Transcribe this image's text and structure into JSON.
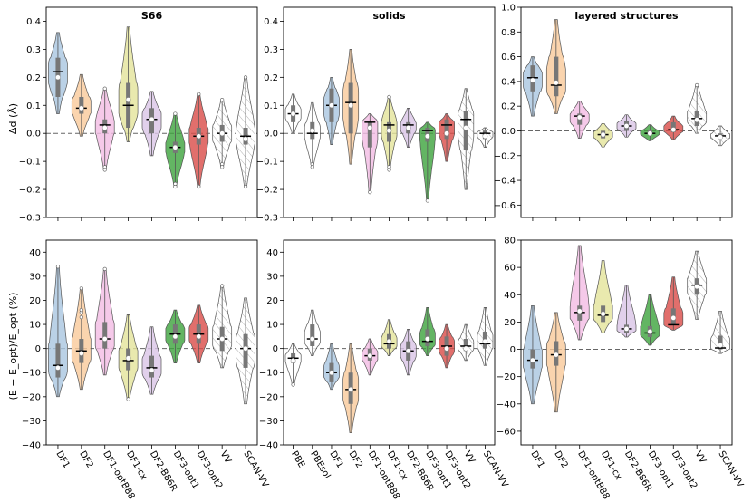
{
  "colors": {
    "DF1": "#a9c6e0",
    "DF2": "#f9c99a",
    "DF1-optB88": "#f2bbe3",
    "DF1-cx": "#e4e49a",
    "DF2-B86R": "#d9c4e6",
    "DF3-opt1": "#3ca33c",
    "DF3-opt2": "#d94b47",
    "VV": "#ffffff",
    "SCAN-VV": "#ffffff",
    "PBE": "#ffffff",
    "PBEsol": "#ffffff"
  },
  "ylabels": {
    "top": "Δd (Å)",
    "bottom": "(E − E_opt)/E_opt (%)"
  },
  "chart_data": [
    {
      "id": "s66_dd",
      "type": "violin",
      "title": "S66",
      "ylim": [
        -0.3,
        0.45
      ],
      "yticks": [
        -0.3,
        -0.2,
        -0.1,
        0.0,
        0.1,
        0.2,
        0.3,
        0.4
      ],
      "ytick_labels": [
        "−0.3",
        "−0.2",
        "−0.1",
        "0.0",
        "0.1",
        "0.2",
        "0.3",
        "0.4"
      ],
      "reference_line": 0,
      "categories": [
        "DF1",
        "DF2",
        "DF1-optB88",
        "DF1-cx",
        "DF2-B86R",
        "DF3-opt1",
        "DF3-opt2",
        "VV",
        "SCAN-VV"
      ],
      "show_xlabels": false,
      "series": [
        {
          "name": "DF1",
          "min": 0.07,
          "max": 0.36,
          "q1": 0.13,
          "q3": 0.27,
          "median": 0.22,
          "mean": 0.2,
          "outliers": []
        },
        {
          "name": "DF2",
          "min": -0.01,
          "max": 0.21,
          "q1": 0.07,
          "q3": 0.13,
          "median": 0.09,
          "mean": 0.09,
          "outliers": []
        },
        {
          "name": "DF1-optB88",
          "min": -0.13,
          "max": 0.16,
          "q1": 0.0,
          "q3": 0.05,
          "median": 0.03,
          "mean": 0.02,
          "outliers": [
            -0.12,
            -0.13,
            0.16
          ]
        },
        {
          "name": "DF1-cx",
          "min": -0.03,
          "max": 0.38,
          "q1": 0.02,
          "q3": 0.18,
          "median": 0.1,
          "mean": 0.12,
          "outliers": []
        },
        {
          "name": "DF2-B86R",
          "min": -0.08,
          "max": 0.15,
          "q1": 0.0,
          "q3": 0.09,
          "median": 0.05,
          "mean": 0.05,
          "outliers": []
        },
        {
          "name": "DF3-opt1",
          "min": -0.19,
          "max": 0.07,
          "q1": -0.07,
          "q3": -0.03,
          "median": -0.05,
          "mean": -0.05,
          "outliers": [
            -0.19,
            -0.18,
            0.07
          ]
        },
        {
          "name": "DF3-opt2",
          "min": -0.19,
          "max": 0.14,
          "q1": -0.04,
          "q3": 0.02,
          "median": -0.01,
          "mean": -0.01,
          "outliers": [
            -0.19,
            0.14
          ]
        },
        {
          "name": "VV",
          "min": -0.12,
          "max": 0.12,
          "q1": -0.03,
          "q3": 0.03,
          "median": 0.0,
          "mean": 0.0,
          "outliers": [
            -0.11,
            -0.12,
            0.12
          ]
        },
        {
          "name": "SCAN-VV",
          "min": -0.19,
          "max": 0.2,
          "q1": -0.04,
          "q3": 0.02,
          "median": -0.01,
          "mean": -0.02,
          "outliers": [
            -0.19,
            0.2
          ]
        }
      ]
    },
    {
      "id": "solids_dd",
      "type": "violin",
      "title": "solids",
      "ylim": [
        -0.3,
        0.45
      ],
      "yticks": [
        -0.3,
        -0.2,
        -0.1,
        0.0,
        0.1,
        0.2,
        0.3,
        0.4
      ],
      "ytick_labels": [
        "−0.3",
        "−0.2",
        "−0.1",
        "0.0",
        "0.1",
        "0.2",
        "0.3",
        "0.4"
      ],
      "reference_line": 0,
      "categories": [
        "PBE",
        "PBEsol",
        "DF1",
        "DF2",
        "DF1-optB88",
        "DF1-cx",
        "DF2-B86R",
        "DF3-opt1",
        "DF3-opt2",
        "VV",
        "SCAN-VV"
      ],
      "show_xlabels": false,
      "series": [
        {
          "name": "PBE",
          "min": 0.0,
          "max": 0.14,
          "q1": 0.04,
          "q3": 0.1,
          "median": 0.07,
          "mean": 0.07,
          "outliers": []
        },
        {
          "name": "PBEsol",
          "min": -0.12,
          "max": 0.11,
          "q1": -0.02,
          "q3": 0.04,
          "median": 0.0,
          "mean": 0.01,
          "outliers": [
            -0.11,
            -0.12
          ]
        },
        {
          "name": "DF1",
          "min": -0.04,
          "max": 0.2,
          "q1": 0.04,
          "q3": 0.16,
          "median": 0.1,
          "mean": 0.1,
          "outliers": []
        },
        {
          "name": "DF2",
          "min": -0.11,
          "max": 0.3,
          "q1": 0.0,
          "q3": 0.18,
          "median": 0.11,
          "mean": 0.1,
          "outliers": []
        },
        {
          "name": "DF1-optB88",
          "min": -0.21,
          "max": 0.07,
          "q1": -0.05,
          "q3": 0.04,
          "median": 0.04,
          "mean": 0.02,
          "outliers": [
            -0.21
          ]
        },
        {
          "name": "DF1-cx",
          "min": -0.13,
          "max": 0.13,
          "q1": -0.03,
          "q3": 0.04,
          "median": 0.03,
          "mean": 0.01,
          "outliers": [
            -0.12,
            -0.13,
            0.13
          ]
        },
        {
          "name": "DF2-B86R",
          "min": -0.05,
          "max": 0.09,
          "q1": 0.0,
          "q3": 0.04,
          "median": 0.03,
          "mean": 0.02,
          "outliers": []
        },
        {
          "name": "DF3-opt1",
          "min": -0.24,
          "max": 0.04,
          "q1": -0.03,
          "q3": 0.02,
          "median": 0.01,
          "mean": -0.01,
          "outliers": [
            -0.24
          ]
        },
        {
          "name": "DF3-opt2",
          "min": -0.1,
          "max": 0.07,
          "q1": -0.02,
          "q3": 0.05,
          "median": 0.03,
          "mean": 0.0,
          "outliers": []
        },
        {
          "name": "VV",
          "min": -0.2,
          "max": 0.16,
          "q1": -0.06,
          "q3": 0.08,
          "median": 0.05,
          "mean": 0.02,
          "outliers": []
        },
        {
          "name": "SCAN-VV",
          "min": -0.05,
          "max": 0.02,
          "q1": -0.02,
          "q3": 0.01,
          "median": 0.0,
          "mean": -0.01,
          "outliers": []
        }
      ]
    },
    {
      "id": "layered_dd",
      "type": "violin",
      "title": "layered structures",
      "ylim": [
        -0.7,
        1.0
      ],
      "yticks": [
        -0.6,
        -0.4,
        -0.2,
        0.0,
        0.2,
        0.4,
        0.6,
        0.8,
        1.0
      ],
      "ytick_labels": [
        "−0.6",
        "−0.4",
        "−0.2",
        "0.0",
        "0.2",
        "0.4",
        "0.6",
        "0.8",
        "1.0"
      ],
      "reference_line": 0,
      "categories": [
        "DF1",
        "DF2",
        "DF1-optB88",
        "DF1-cx",
        "DF2-B86R",
        "DF3-opt1",
        "DF3-opt2",
        "VV",
        "SCAN-VV"
      ],
      "show_xlabels": false,
      "series": [
        {
          "name": "DF1",
          "min": 0.12,
          "max": 0.6,
          "q1": 0.32,
          "q3": 0.53,
          "median": 0.43,
          "mean": 0.41,
          "outliers": []
        },
        {
          "name": "DF2",
          "min": 0.14,
          "max": 0.9,
          "q1": 0.28,
          "q3": 0.6,
          "median": 0.37,
          "mean": 0.39,
          "outliers": []
        },
        {
          "name": "DF1-optB88",
          "min": -0.06,
          "max": 0.24,
          "q1": 0.05,
          "q3": 0.14,
          "median": 0.12,
          "mean": 0.11,
          "outliers": []
        },
        {
          "name": "DF1-cx",
          "min": -0.13,
          "max": 0.06,
          "q1": -0.06,
          "q3": 0.0,
          "median": -0.03,
          "mean": -0.03,
          "outliers": []
        },
        {
          "name": "DF2-B86R",
          "min": -0.05,
          "max": 0.13,
          "q1": 0.0,
          "q3": 0.08,
          "median": 0.04,
          "mean": 0.04,
          "outliers": []
        },
        {
          "name": "DF3-opt1",
          "min": -0.08,
          "max": 0.05,
          "q1": -0.03,
          "q3": 0.01,
          "median": -0.02,
          "mean": -0.02,
          "outliers": []
        },
        {
          "name": "DF3-opt2",
          "min": -0.07,
          "max": 0.12,
          "q1": -0.01,
          "q3": 0.07,
          "median": 0.01,
          "mean": 0.01,
          "outliers": []
        },
        {
          "name": "VV",
          "min": -0.02,
          "max": 0.37,
          "q1": 0.04,
          "q3": 0.16,
          "median": 0.1,
          "mean": 0.09,
          "outliers": [
            0.37
          ]
        },
        {
          "name": "SCAN-VV",
          "min": -0.12,
          "max": 0.04,
          "q1": -0.06,
          "q3": -0.02,
          "median": -0.04,
          "mean": -0.05,
          "outliers": []
        }
      ]
    },
    {
      "id": "s66_e",
      "type": "violin",
      "title": "",
      "ylim": [
        -40,
        45
      ],
      "yticks": [
        -40,
        -30,
        -20,
        -10,
        0,
        10,
        20,
        30,
        40
      ],
      "ytick_labels": [
        "−40",
        "−30",
        "−20",
        "−10",
        "0",
        "10",
        "20",
        "30",
        "40"
      ],
      "reference_line": 0,
      "categories": [
        "DF1",
        "DF2",
        "DF1-optB88",
        "DF1-cx",
        "DF2-B86R",
        "DF3-opt1",
        "DF3-opt2",
        "VV",
        "SCAN-VV"
      ],
      "show_xlabels": true,
      "series": [
        {
          "name": "DF1",
          "min": -20,
          "max": 34,
          "q1": -12,
          "q3": 2,
          "median": -7,
          "mean": -8,
          "outliers": [
            34
          ]
        },
        {
          "name": "DF2",
          "min": -17,
          "max": 25,
          "q1": -6,
          "q3": 4,
          "median": -1,
          "mean": -2,
          "outliers": [
            13,
            15,
            16,
            25
          ]
        },
        {
          "name": "DF1-optB88",
          "min": -11,
          "max": 33,
          "q1": 0,
          "q3": 11,
          "median": 4,
          "mean": 4,
          "outliers": [
            33
          ]
        },
        {
          "name": "DF1-cx",
          "min": -21,
          "max": 14,
          "q1": -9,
          "q3": 0,
          "median": -5,
          "mean": -4,
          "outliers": [
            -21
          ]
        },
        {
          "name": "DF2-B86R",
          "min": -19,
          "max": 9,
          "q1": -12,
          "q3": -3,
          "median": -8,
          "mean": -9,
          "outliers": []
        },
        {
          "name": "DF3-opt1",
          "min": -6,
          "max": 16,
          "q1": 2,
          "q3": 10,
          "median": 6,
          "mean": 5,
          "outliers": []
        },
        {
          "name": "DF3-opt2",
          "min": -6,
          "max": 18,
          "q1": 2,
          "q3": 10,
          "median": 6,
          "mean": 5,
          "outliers": []
        },
        {
          "name": "VV",
          "min": -8,
          "max": 26,
          "q1": -1,
          "q3": 9,
          "median": 4,
          "mean": 4,
          "outliers": [
            26
          ]
        },
        {
          "name": "SCAN-VV",
          "min": -23,
          "max": 21,
          "q1": -8,
          "q3": 6,
          "median": 0,
          "mean": 0,
          "outliers": []
        }
      ]
    },
    {
      "id": "solids_e",
      "type": "violin",
      "title": "",
      "ylim": [
        -40,
        45
      ],
      "yticks": [
        -40,
        -30,
        -20,
        -10,
        0,
        10,
        20,
        30,
        40
      ],
      "ytick_labels": [
        "−40",
        "−30",
        "−20",
        "−10",
        "0",
        "10",
        "20",
        "30",
        "40"
      ],
      "reference_line": 0,
      "categories": [
        "PBE",
        "PBEsol",
        "DF1",
        "DF2",
        "DF1-optB88",
        "DF1-cx",
        "DF2-B86R",
        "DF3-opt1",
        "DF3-opt2",
        "VV",
        "SCAN-VV"
      ],
      "show_xlabels": true,
      "series": [
        {
          "name": "PBE",
          "min": -15,
          "max": 2,
          "q1": -6,
          "q3": -2,
          "median": -4,
          "mean": -5,
          "outliers": [
            -15
          ]
        },
        {
          "name": "PBEsol",
          "min": -3,
          "max": 16,
          "q1": 1,
          "q3": 10,
          "median": 4,
          "mean": 4,
          "outliers": []
        },
        {
          "name": "DF1",
          "min": -17,
          "max": 2,
          "q1": -14,
          "q3": -6,
          "median": -10,
          "mean": -10,
          "outliers": []
        },
        {
          "name": "DF2",
          "min": -35,
          "max": 2,
          "q1": -23,
          "q3": -10,
          "median": -17,
          "mean": -17,
          "outliers": []
        },
        {
          "name": "DF1-optB88",
          "min": -11,
          "max": 4,
          "q1": -5,
          "q3": 0,
          "median": -3,
          "mean": -3,
          "outliers": []
        },
        {
          "name": "DF1-cx",
          "min": -3,
          "max": 12,
          "q1": 0,
          "q3": 6,
          "median": 2,
          "mean": 3,
          "outliers": []
        },
        {
          "name": "DF2-B86R",
          "min": -11,
          "max": 8,
          "q1": -5,
          "q3": 3,
          "median": -1,
          "mean": -1,
          "outliers": []
        },
        {
          "name": "DF3-opt1",
          "min": -3,
          "max": 17,
          "q1": 1,
          "q3": 8,
          "median": 3,
          "mean": 4,
          "outliers": []
        },
        {
          "name": "DF3-opt2",
          "min": -8,
          "max": 10,
          "q1": -3,
          "q3": 5,
          "median": 1,
          "mean": 0,
          "outliers": []
        },
        {
          "name": "VV",
          "min": -5,
          "max": 10,
          "q1": -1,
          "q3": 4,
          "median": 1,
          "mean": 0,
          "outliers": []
        },
        {
          "name": "SCAN-VV",
          "min": -7,
          "max": 17,
          "q1": 0,
          "q3": 7,
          "median": 2,
          "mean": 3,
          "outliers": []
        }
      ]
    },
    {
      "id": "layered_e",
      "type": "violin",
      "title": "",
      "ylim": [
        -70,
        80
      ],
      "yticks": [
        -60,
        -40,
        -20,
        0,
        20,
        40,
        60,
        80
      ],
      "ytick_labels": [
        "−60",
        "−40",
        "−20",
        "0",
        "20",
        "40",
        "60",
        "80"
      ],
      "reference_line": 0,
      "categories": [
        "DF1",
        "DF2",
        "DF1-optB88",
        "DF1-cx",
        "DF2-B86R",
        "DF3-opt1",
        "DF3-opt2",
        "VV",
        "SCAN-VV"
      ],
      "show_xlabels": true,
      "series": [
        {
          "name": "DF1",
          "min": -40,
          "max": 32,
          "q1": -14,
          "q3": 0,
          "median": -8,
          "mean": -8,
          "outliers": []
        },
        {
          "name": "DF2",
          "min": -46,
          "max": 27,
          "q1": -12,
          "q3": 6,
          "median": -4,
          "mean": -4,
          "outliers": []
        },
        {
          "name": "DF1-optB88",
          "min": 7,
          "max": 76,
          "q1": 21,
          "q3": 32,
          "median": 27,
          "mean": 28,
          "outliers": []
        },
        {
          "name": "DF1-cx",
          "min": 12,
          "max": 65,
          "q1": 20,
          "q3": 32,
          "median": 25,
          "mean": 26,
          "outliers": []
        },
        {
          "name": "DF2-B86R",
          "min": 9,
          "max": 47,
          "q1": 12,
          "q3": 18,
          "median": 15,
          "mean": 15,
          "outliers": []
        },
        {
          "name": "DF3-opt1",
          "min": 3,
          "max": 40,
          "q1": 9,
          "q3": 17,
          "median": 12,
          "mean": 13,
          "outliers": []
        },
        {
          "name": "DF3-opt2",
          "min": 14,
          "max": 53,
          "q1": 18,
          "q3": 30,
          "median": 18,
          "mean": 23,
          "outliers": []
        },
        {
          "name": "VV",
          "min": 22,
          "max": 72,
          "q1": 40,
          "q3": 52,
          "median": 47,
          "mean": 46,
          "outliers": []
        },
        {
          "name": "SCAN-VV",
          "min": -3,
          "max": 28,
          "q1": 0,
          "q3": 10,
          "median": 1,
          "mean": 3,
          "outliers": []
        }
      ]
    }
  ]
}
